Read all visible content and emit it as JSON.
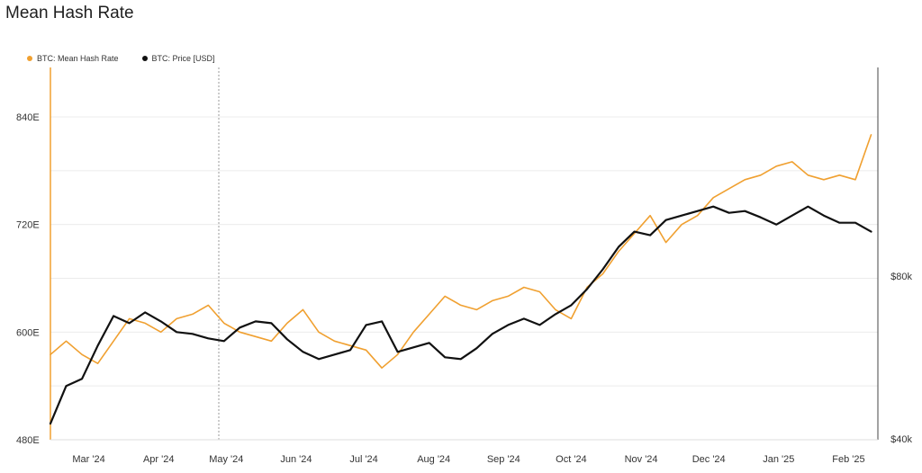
{
  "chart_data": {
    "type": "line",
    "title": "Mean Hash Rate",
    "legend_position": "top-left",
    "grid": true,
    "x_ticks": [
      "Mar '24",
      "Apr '24",
      "May '24",
      "Jun '24",
      "Jul '24",
      "Aug '24",
      "Sep '24",
      "Oct '24",
      "Nov '24",
      "Dec '24",
      "Jan '25",
      "Feb '25"
    ],
    "y_left": {
      "ticks": [
        "480E",
        "600E",
        "720E",
        "840E"
      ],
      "min": 480,
      "max": 840
    },
    "y_right": {
      "ticks": [
        "$40k",
        "$80k"
      ]
    },
    "series": [
      {
        "name": "BTC: Mean Hash Rate",
        "color": "#f0a030",
        "axis": "left",
        "x": [
          "2024-02-13",
          "2024-02-20",
          "2024-02-27",
          "2024-03-05",
          "2024-03-12",
          "2024-03-19",
          "2024-03-26",
          "2024-04-02",
          "2024-04-09",
          "2024-04-16",
          "2024-04-23",
          "2024-04-30",
          "2024-05-07",
          "2024-05-14",
          "2024-05-21",
          "2024-05-28",
          "2024-06-04",
          "2024-06-11",
          "2024-06-18",
          "2024-06-25",
          "2024-07-02",
          "2024-07-09",
          "2024-07-16",
          "2024-07-23",
          "2024-07-30",
          "2024-08-06",
          "2024-08-13",
          "2024-08-20",
          "2024-08-27",
          "2024-09-03",
          "2024-09-10",
          "2024-09-17",
          "2024-09-24",
          "2024-10-01",
          "2024-10-08",
          "2024-10-15",
          "2024-10-22",
          "2024-10-29",
          "2024-11-05",
          "2024-11-12",
          "2024-11-19",
          "2024-11-26",
          "2024-12-03",
          "2024-12-10",
          "2024-12-17",
          "2024-12-24",
          "2024-12-31",
          "2025-01-07",
          "2025-01-14",
          "2025-01-21",
          "2025-01-28",
          "2025-02-04",
          "2025-02-11"
        ],
        "values": [
          575,
          590,
          575,
          565,
          590,
          615,
          610,
          600,
          615,
          620,
          630,
          610,
          600,
          595,
          590,
          610,
          625,
          600,
          590,
          585,
          580,
          560,
          575,
          600,
          620,
          640,
          630,
          625,
          635,
          640,
          650,
          645,
          625,
          615,
          650,
          665,
          690,
          710,
          730,
          700,
          720,
          730,
          750,
          760,
          770,
          775,
          785,
          790,
          775,
          770,
          775,
          770,
          820
        ]
      },
      {
        "name": "BTC: Price [USD]",
        "color": "#111111",
        "axis": "left",
        "x": [
          "2024-02-13",
          "2024-02-20",
          "2024-02-27",
          "2024-03-05",
          "2024-03-12",
          "2024-03-19",
          "2024-03-26",
          "2024-04-02",
          "2024-04-09",
          "2024-04-16",
          "2024-04-23",
          "2024-04-30",
          "2024-05-07",
          "2024-05-14",
          "2024-05-21",
          "2024-05-28",
          "2024-06-04",
          "2024-06-11",
          "2024-06-18",
          "2024-06-25",
          "2024-07-02",
          "2024-07-09",
          "2024-07-16",
          "2024-07-23",
          "2024-07-30",
          "2024-08-06",
          "2024-08-13",
          "2024-08-20",
          "2024-08-27",
          "2024-09-03",
          "2024-09-10",
          "2024-09-17",
          "2024-09-24",
          "2024-10-01",
          "2024-10-08",
          "2024-10-15",
          "2024-10-22",
          "2024-10-29",
          "2024-11-05",
          "2024-11-12",
          "2024-11-19",
          "2024-11-26",
          "2024-12-03",
          "2024-12-10",
          "2024-12-17",
          "2024-12-24",
          "2024-12-31",
          "2025-01-07",
          "2025-01-14",
          "2025-01-21",
          "2025-01-28",
          "2025-02-04",
          "2025-02-11"
        ],
        "values": [
          498,
          540,
          548,
          585,
          618,
          610,
          622,
          612,
          600,
          598,
          593,
          590,
          605,
          612,
          610,
          592,
          578,
          570,
          575,
          580,
          608,
          612,
          578,
          583,
          588,
          572,
          570,
          582,
          598,
          608,
          615,
          608,
          620,
          630,
          648,
          670,
          695,
          712,
          708,
          725,
          730,
          735,
          740,
          733,
          735,
          728,
          720,
          730,
          740,
          730,
          722,
          722,
          712
        ]
      }
    ]
  }
}
